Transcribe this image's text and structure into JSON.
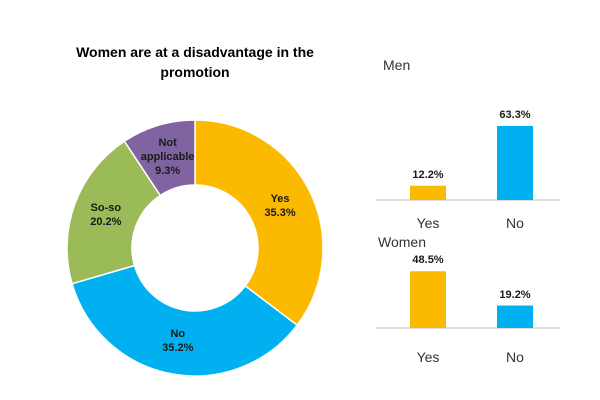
{
  "chart_data": [
    {
      "type": "donut",
      "title": "Women are at a disadvantage in the promotion",
      "categories": [
        "Yes",
        "No",
        "So-so",
        "Not applicable"
      ],
      "values": [
        35.3,
        35.2,
        20.2,
        9.3
      ],
      "value_labels": [
        "35.3%",
        "35.2%",
        "20.2%",
        "9.3%"
      ],
      "colors": [
        "#fbb900",
        "#00b0f0",
        "#9bbb59",
        "#8064a2"
      ]
    },
    {
      "type": "bar",
      "title": "Men",
      "categories": [
        "Yes",
        "No"
      ],
      "values": [
        12.2,
        63.3
      ],
      "value_labels": [
        "12.2%",
        "63.3%"
      ],
      "colors": [
        "#fbb900",
        "#00b0f0"
      ]
    },
    {
      "type": "bar",
      "title": "Women",
      "categories": [
        "Yes",
        "No"
      ],
      "values": [
        48.5,
        19.2
      ],
      "value_labels": [
        "48.5%",
        "19.2%"
      ],
      "colors": [
        "#fbb900",
        "#00b0f0"
      ]
    }
  ]
}
